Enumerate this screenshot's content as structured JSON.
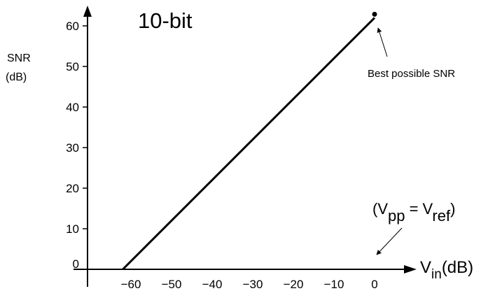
{
  "chart_data": {
    "type": "line",
    "title": "10-bit",
    "ylabel": [
      "SNR",
      "(dB)"
    ],
    "xlabel": {
      "main": "V",
      "sub": "in",
      "unit": "(dB)"
    },
    "x_ticks": [
      "−60",
      "−50",
      "−40",
      "−30",
      "−20",
      "−10",
      "0"
    ],
    "y_ticks": [
      "0",
      "10",
      "20",
      "30",
      "40",
      "50",
      "60"
    ],
    "xlim": [
      -69,
      0
    ],
    "ylim": [
      0,
      62
    ],
    "grid": false,
    "series": [
      {
        "x": [
          -62,
          0
        ],
        "y": [
          0,
          62
        ]
      }
    ],
    "marker_point": {
      "x": 0,
      "y": 62
    },
    "annotations": {
      "best": "Best possible SNR",
      "vpp": {
        "open": "(V",
        "sub1": "pp",
        "eq": " = V",
        "sub2": "ref",
        "close": ")"
      }
    },
    "colors": {
      "line": "#000000",
      "axis": "#000000",
      "background": "#ffffff"
    }
  }
}
